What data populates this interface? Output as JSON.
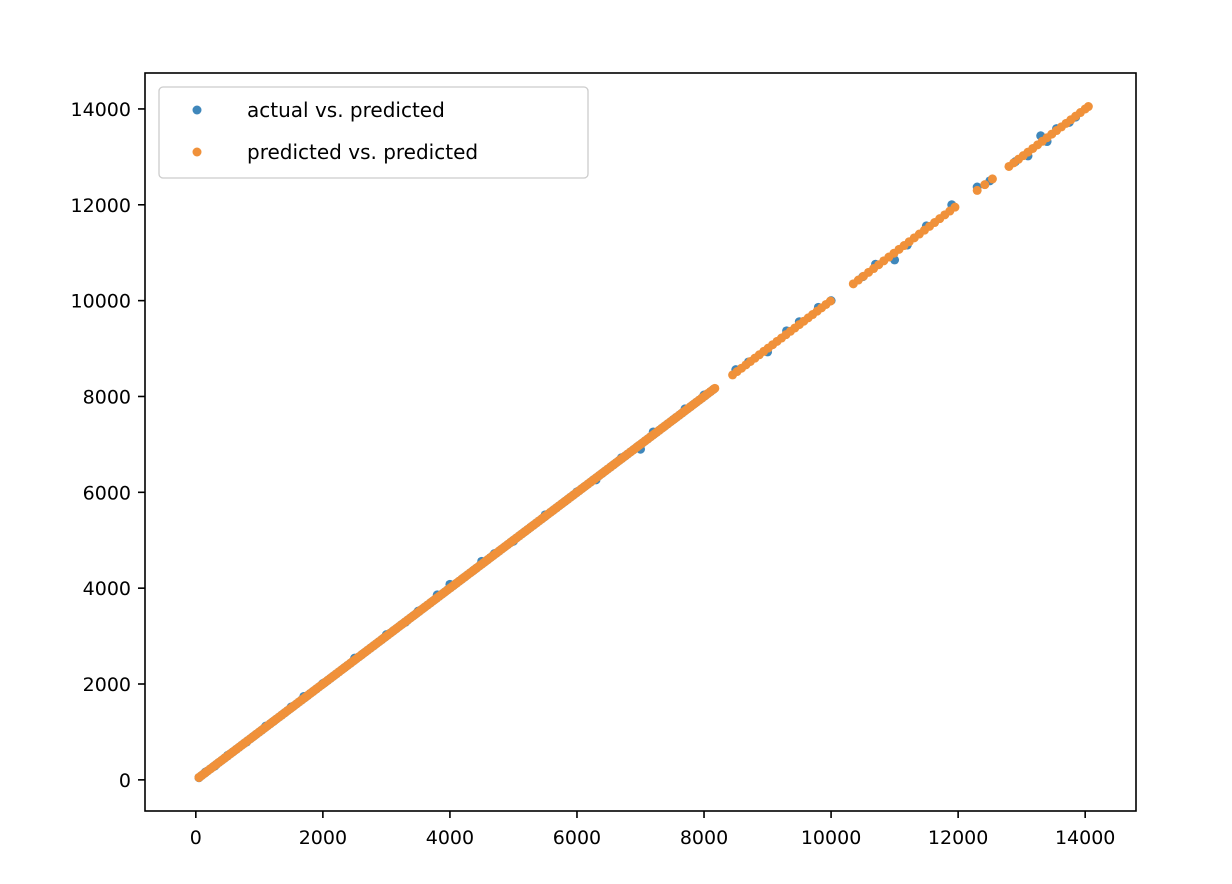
{
  "chart_data": {
    "type": "scatter",
    "title": "",
    "xlabel": "",
    "ylabel": "",
    "xlim": [
      -800,
      14800
    ],
    "ylim": [
      -650,
      14750
    ],
    "x_ticks": [
      0,
      2000,
      4000,
      6000,
      8000,
      10000,
      12000,
      14000
    ],
    "y_ticks": [
      0,
      2000,
      4000,
      6000,
      8000,
      10000,
      12000,
      14000
    ],
    "x_tick_labels": [
      "0",
      "2000",
      "4000",
      "6000",
      "8000",
      "10000",
      "12000",
      "14000"
    ],
    "y_tick_labels": [
      "0",
      "2000",
      "4000",
      "6000",
      "8000",
      "10000",
      "12000",
      "14000"
    ],
    "grid": false,
    "legend_placement": "upper-left",
    "series": [
      {
        "name": "actual vs. predicted",
        "color": "#3f87bb",
        "points": [
          [
            50,
            45
          ],
          [
            150,
            160
          ],
          [
            300,
            290
          ],
          [
            500,
            510
          ],
          [
            800,
            790
          ],
          [
            1100,
            1120
          ],
          [
            1500,
            1520
          ],
          [
            1700,
            1740
          ],
          [
            2000,
            2010
          ],
          [
            2500,
            2540
          ],
          [
            3000,
            3030
          ],
          [
            3300,
            3290
          ],
          [
            3500,
            3520
          ],
          [
            3800,
            3860
          ],
          [
            4000,
            4080
          ],
          [
            4500,
            4560
          ],
          [
            4700,
            4720
          ],
          [
            5000,
            4980
          ],
          [
            5500,
            5530
          ],
          [
            6000,
            6010
          ],
          [
            6300,
            6260
          ],
          [
            6700,
            6720
          ],
          [
            7000,
            6900
          ],
          [
            7200,
            7260
          ],
          [
            7700,
            7740
          ],
          [
            8000,
            8030
          ],
          [
            8500,
            8560
          ],
          [
            8700,
            8720
          ],
          [
            9000,
            8930
          ],
          [
            9300,
            9370
          ],
          [
            9500,
            9560
          ],
          [
            9800,
            9860
          ],
          [
            10000,
            10000
          ],
          [
            10500,
            10500
          ],
          [
            10700,
            10760
          ],
          [
            11000,
            10850
          ],
          [
            11200,
            11160
          ],
          [
            11500,
            11560
          ],
          [
            11900,
            12000
          ],
          [
            12300,
            12370
          ],
          [
            12500,
            12500
          ],
          [
            12900,
            12900
          ],
          [
            13100,
            13020
          ],
          [
            13300,
            13440
          ],
          [
            13400,
            13320
          ],
          [
            13550,
            13590
          ],
          [
            13750,
            13720
          ],
          [
            13850,
            13830
          ]
        ]
      },
      {
        "name": "predicted  vs. predicted",
        "color": "#f0913a",
        "points": [
          [
            50,
            50
          ],
          [
            14050,
            14050
          ]
        ]
      }
    ]
  }
}
